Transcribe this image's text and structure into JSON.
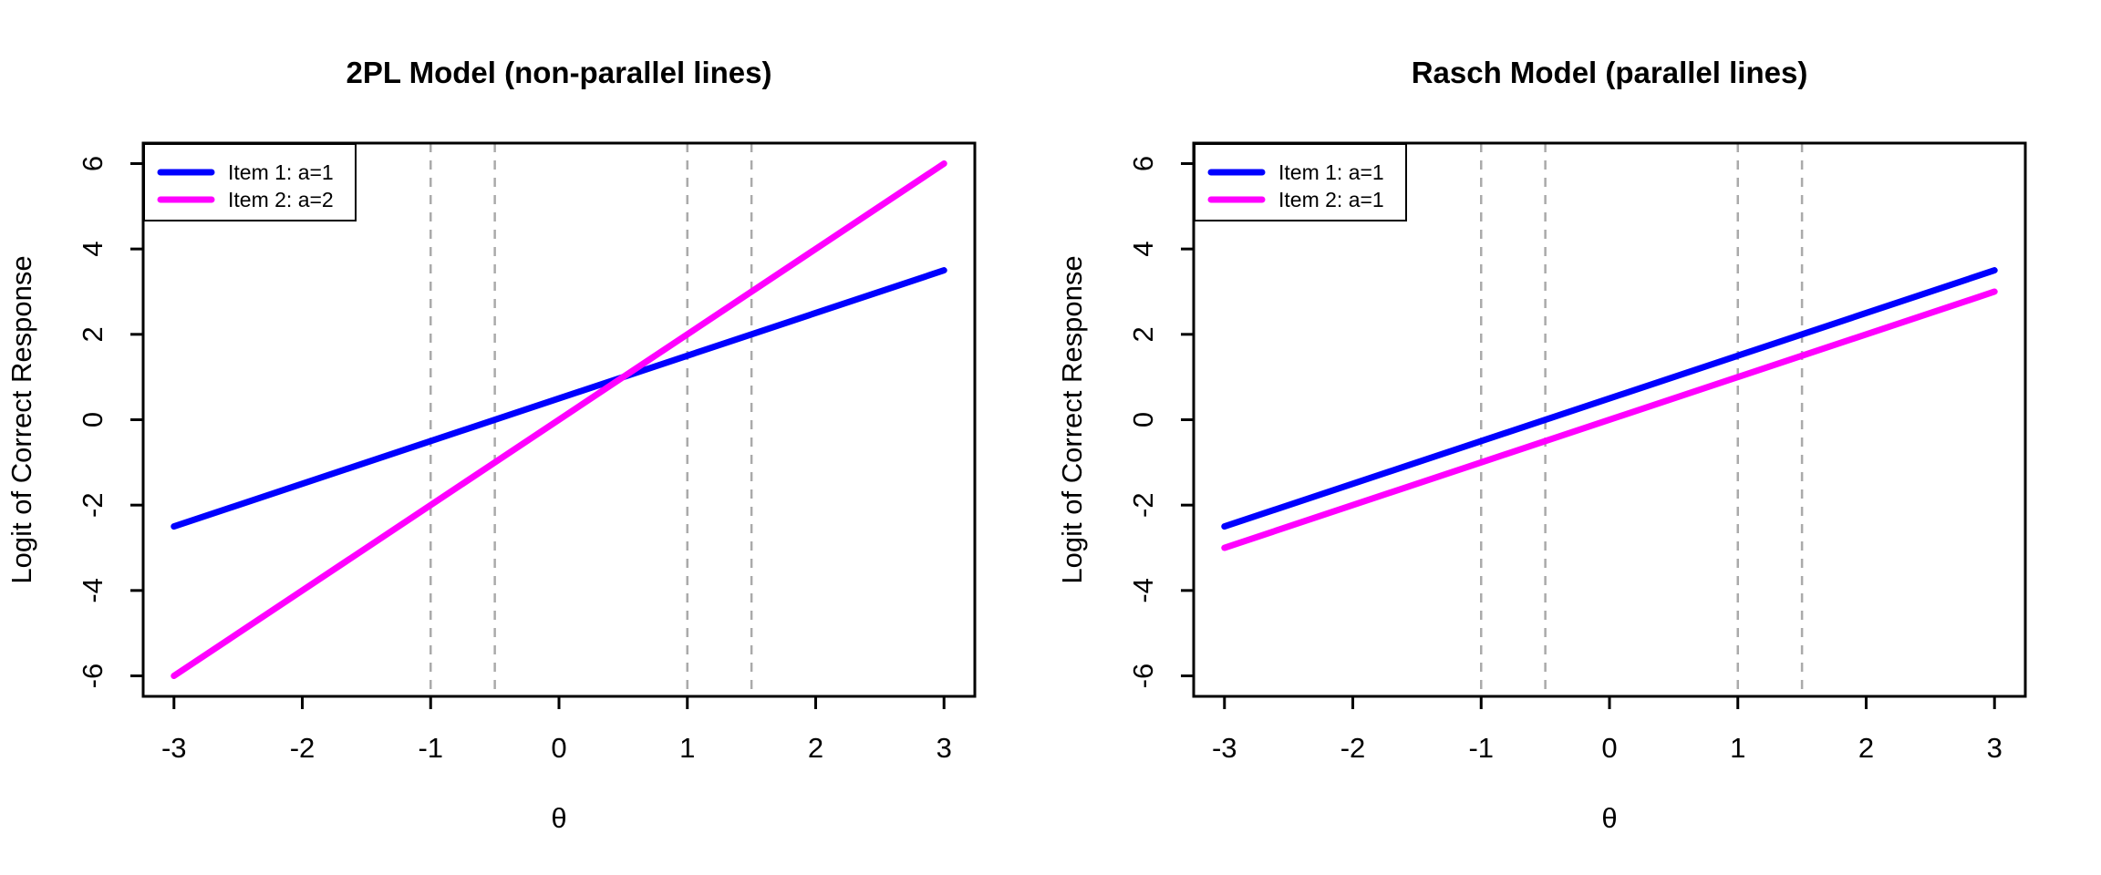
{
  "figure": {
    "background": "#ffffff",
    "axis_color": "#000000",
    "vline_style": "dashed"
  },
  "chart_data": [
    {
      "type": "line",
      "title": "2PL Model (non-parallel lines)",
      "xlabel": "θ",
      "ylabel": "Logit of Correct Response",
      "xlim": [
        -3,
        3
      ],
      "ylim": [
        -6,
        6
      ],
      "x_ticks": [
        -3,
        -2,
        -1,
        0,
        1,
        2,
        3
      ],
      "y_ticks": [
        -6,
        -4,
        -2,
        0,
        2,
        4,
        6
      ],
      "grid": false,
      "x": [
        -3,
        3
      ],
      "series": [
        {
          "name": "Item 1: a=1",
          "color": "#0000ff",
          "values": [
            -2.5,
            3.5
          ],
          "slope": 1,
          "intercept": 0.5
        },
        {
          "name": "Item 2: a=2",
          "color": "#ff00ff",
          "values": [
            -6,
            6
          ],
          "slope": 2,
          "intercept": 0
        }
      ],
      "vlines": {
        "x": [
          -1,
          -0.5,
          1,
          1.5
        ],
        "color": "#aaaaaa",
        "style": "dashed"
      },
      "legend_position": "topleft"
    },
    {
      "type": "line",
      "title": "Rasch Model (parallel lines)",
      "xlabel": "θ",
      "ylabel": "Logit of Correct Response",
      "xlim": [
        -3,
        3
      ],
      "ylim": [
        -6,
        6
      ],
      "x_ticks": [
        -3,
        -2,
        -1,
        0,
        1,
        2,
        3
      ],
      "y_ticks": [
        -6,
        -4,
        -2,
        0,
        2,
        4,
        6
      ],
      "grid": false,
      "x": [
        -3,
        3
      ],
      "series": [
        {
          "name": "Item 1: a=1",
          "color": "#0000ff",
          "values": [
            -2.5,
            3.5
          ],
          "slope": 1,
          "intercept": 0.5
        },
        {
          "name": "Item 2: a=1",
          "color": "#ff00ff",
          "values": [
            -3,
            3
          ],
          "slope": 1,
          "intercept": 0
        }
      ],
      "vlines": {
        "x": [
          -1,
          -0.5,
          1,
          1.5
        ],
        "color": "#aaaaaa",
        "style": "dashed"
      },
      "legend_position": "topleft"
    }
  ]
}
